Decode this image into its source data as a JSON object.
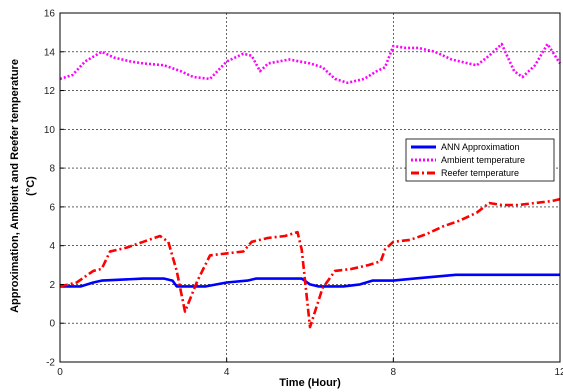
{
  "chart_data": {
    "type": "line",
    "xlabel": "Time (Hour)",
    "ylabel": "Approximation, Ambient and Reefer temperature",
    "ylabel_unit": "(°C)",
    "xlim": [
      0,
      12
    ],
    "ylim": [
      -2,
      16
    ],
    "xticks": [
      0,
      4,
      8,
      12
    ],
    "yticks": [
      -2,
      0,
      2,
      4,
      6,
      8,
      10,
      12,
      14,
      16
    ],
    "xtick_labels": [
      "0",
      "4",
      "8",
      "12"
    ],
    "ytick_labels": [
      "-2",
      "0",
      "2",
      "4",
      "6",
      "8",
      "10",
      "12",
      "14",
      "16"
    ],
    "grid": true,
    "legend_position": "right-middle",
    "series": [
      {
        "name": "ANN Approximation",
        "color": "#0000ff",
        "style": "solid",
        "points": [
          [
            0,
            1.9
          ],
          [
            0.5,
            1.9
          ],
          [
            0.8,
            2.1
          ],
          [
            1.0,
            2.2
          ],
          [
            2.0,
            2.3
          ],
          [
            2.3,
            2.3
          ],
          [
            2.5,
            2.3
          ],
          [
            2.7,
            2.2
          ],
          [
            2.8,
            1.9
          ],
          [
            3.5,
            1.9
          ],
          [
            4.0,
            2.1
          ],
          [
            4.5,
            2.2
          ],
          [
            4.7,
            2.3
          ],
          [
            5.0,
            2.3
          ],
          [
            5.5,
            2.3
          ],
          [
            5.8,
            2.3
          ],
          [
            6.0,
            2.0
          ],
          [
            6.2,
            1.9
          ],
          [
            6.8,
            1.9
          ],
          [
            7.2,
            2.0
          ],
          [
            7.5,
            2.2
          ],
          [
            8.0,
            2.2
          ],
          [
            8.5,
            2.3
          ],
          [
            9.0,
            2.4
          ],
          [
            9.5,
            2.5
          ],
          [
            10.0,
            2.5
          ],
          [
            10.5,
            2.5
          ],
          [
            11.0,
            2.5
          ],
          [
            11.5,
            2.5
          ],
          [
            12.0,
            2.5
          ]
        ]
      },
      {
        "name": "Ambient temperature",
        "color": "#ff00ff",
        "style": "dotted",
        "points": [
          [
            0,
            12.6
          ],
          [
            0.3,
            12.8
          ],
          [
            0.6,
            13.5
          ],
          [
            1.0,
            14.0
          ],
          [
            1.3,
            13.7
          ],
          [
            1.7,
            13.5
          ],
          [
            2.0,
            13.4
          ],
          [
            2.5,
            13.3
          ],
          [
            2.9,
            13.0
          ],
          [
            3.2,
            12.7
          ],
          [
            3.6,
            12.6
          ],
          [
            4.0,
            13.5
          ],
          [
            4.4,
            13.9
          ],
          [
            4.6,
            13.8
          ],
          [
            4.8,
            13.0
          ],
          [
            5.0,
            13.4
          ],
          [
            5.5,
            13.6
          ],
          [
            6.0,
            13.4
          ],
          [
            6.3,
            13.2
          ],
          [
            6.6,
            12.6
          ],
          [
            6.9,
            12.4
          ],
          [
            7.3,
            12.6
          ],
          [
            7.6,
            13.0
          ],
          [
            7.8,
            13.2
          ],
          [
            8.0,
            14.3
          ],
          [
            8.3,
            14.2
          ],
          [
            8.6,
            14.2
          ],
          [
            9.0,
            14.0
          ],
          [
            9.4,
            13.6
          ],
          [
            9.8,
            13.4
          ],
          [
            10.0,
            13.3
          ],
          [
            10.3,
            13.8
          ],
          [
            10.6,
            14.4
          ],
          [
            10.9,
            13.0
          ],
          [
            11.1,
            12.7
          ],
          [
            11.4,
            13.3
          ],
          [
            11.7,
            14.4
          ],
          [
            12.0,
            13.4
          ]
        ]
      },
      {
        "name": "Reefer temperature",
        "color": "#ff0000",
        "style": "dashdot",
        "points": [
          [
            0,
            1.9
          ],
          [
            0.4,
            2.1
          ],
          [
            0.8,
            2.7
          ],
          [
            1.0,
            2.8
          ],
          [
            1.2,
            3.7
          ],
          [
            1.6,
            3.9
          ],
          [
            2.0,
            4.2
          ],
          [
            2.4,
            4.5
          ],
          [
            2.6,
            4.2
          ],
          [
            2.8,
            2.7
          ],
          [
            3.0,
            0.6
          ],
          [
            3.3,
            2.2
          ],
          [
            3.6,
            3.5
          ],
          [
            4.0,
            3.6
          ],
          [
            4.4,
            3.7
          ],
          [
            4.6,
            4.2
          ],
          [
            5.0,
            4.4
          ],
          [
            5.4,
            4.5
          ],
          [
            5.7,
            4.7
          ],
          [
            5.8,
            3.8
          ],
          [
            6.0,
            -0.2
          ],
          [
            6.3,
            1.8
          ],
          [
            6.6,
            2.7
          ],
          [
            7.0,
            2.8
          ],
          [
            7.4,
            3.0
          ],
          [
            7.7,
            3.2
          ],
          [
            7.8,
            3.8
          ],
          [
            8.0,
            4.2
          ],
          [
            8.4,
            4.3
          ],
          [
            8.8,
            4.6
          ],
          [
            9.2,
            5.0
          ],
          [
            9.6,
            5.3
          ],
          [
            10.0,
            5.7
          ],
          [
            10.3,
            6.2
          ],
          [
            10.6,
            6.1
          ],
          [
            11.0,
            6.1
          ],
          [
            11.4,
            6.2
          ],
          [
            11.8,
            6.3
          ],
          [
            12.0,
            6.4
          ]
        ]
      }
    ]
  }
}
